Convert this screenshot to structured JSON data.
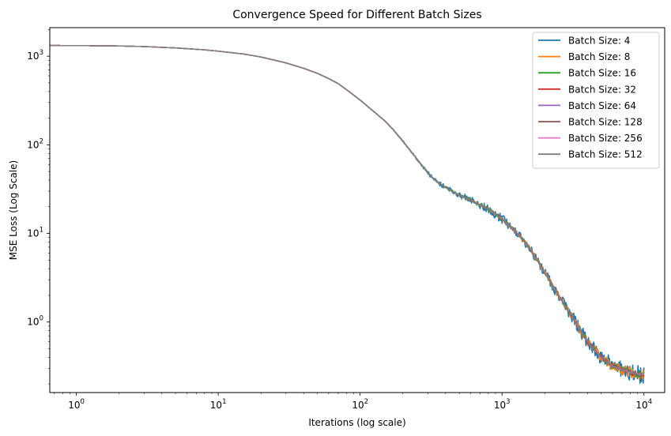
{
  "chart_data": {
    "type": "line",
    "title": "Convergence Speed for Different Batch Sizes",
    "xlabel": "Iterations (log scale)",
    "ylabel": "MSE Loss (Log Scale)",
    "xscale": "log",
    "yscale": "log",
    "xlim": [
      0.65,
      14000
    ],
    "ylim": [
      0.16,
      2100
    ],
    "legend_position": "top-right",
    "grid": false,
    "x_ticks": [
      {
        "value": 1,
        "base": "10",
        "exp": "0"
      },
      {
        "value": 10,
        "base": "10",
        "exp": "1"
      },
      {
        "value": 100,
        "base": "10",
        "exp": "2"
      },
      {
        "value": 1000,
        "base": "10",
        "exp": "3"
      },
      {
        "value": 10000,
        "base": "10",
        "exp": "4"
      }
    ],
    "y_ticks": [
      {
        "value": 1,
        "base": "10",
        "exp": "0"
      },
      {
        "value": 10,
        "base": "10",
        "exp": "1"
      },
      {
        "value": 100,
        "base": "10",
        "exp": "2"
      },
      {
        "value": 1000,
        "base": "10",
        "exp": "3"
      }
    ],
    "curve": {
      "x": [
        0.65,
        1,
        2,
        3,
        5,
        8,
        10,
        15,
        20,
        30,
        40,
        50,
        60,
        70,
        80,
        100,
        120,
        150,
        170,
        200,
        250,
        300,
        350,
        400,
        500,
        600,
        700,
        800,
        1000,
        1200,
        1500,
        1800,
        2000,
        2500,
        3000,
        3500,
        4000,
        5000,
        6000,
        7000,
        8000,
        9000,
        10000
      ],
      "y": [
        1320,
        1318,
        1305,
        1285,
        1240,
        1180,
        1140,
        1060,
        980,
        840,
        730,
        640,
        560,
        490,
        420,
        320,
        250,
        185,
        150,
        110,
        70,
        48,
        38,
        33,
        27,
        24,
        21,
        19,
        14.5,
        11.2,
        7.5,
        4.8,
        3.6,
        2.0,
        1.25,
        0.85,
        0.6,
        0.4,
        0.32,
        0.29,
        0.27,
        0.26,
        0.255
      ]
    },
    "series": [
      {
        "name": "Batch Size: 4",
        "color": "#1f77b4",
        "noise": 0.055,
        "noise_start": 150
      },
      {
        "name": "Batch Size: 8",
        "color": "#ff7f0e",
        "noise": 0.03,
        "noise_start": 300
      },
      {
        "name": "Batch Size: 16",
        "color": "#2ca02c",
        "noise": 0.02,
        "noise_start": 120
      },
      {
        "name": "Batch Size: 32",
        "color": "#d62728",
        "noise": 0.012,
        "noise_start": 300
      },
      {
        "name": "Batch Size: 64",
        "color": "#9467bd",
        "noise": 0.008,
        "noise_start": 300
      },
      {
        "name": "Batch Size: 128",
        "color": "#8c564b",
        "noise": 0.006,
        "noise_start": 300
      },
      {
        "name": "Batch Size: 256",
        "color": "#e377c2",
        "noise": 0.004,
        "noise_start": 300
      },
      {
        "name": "Batch Size: 512",
        "color": "#7f7f7f",
        "noise": 0.003,
        "noise_start": 300
      }
    ]
  }
}
